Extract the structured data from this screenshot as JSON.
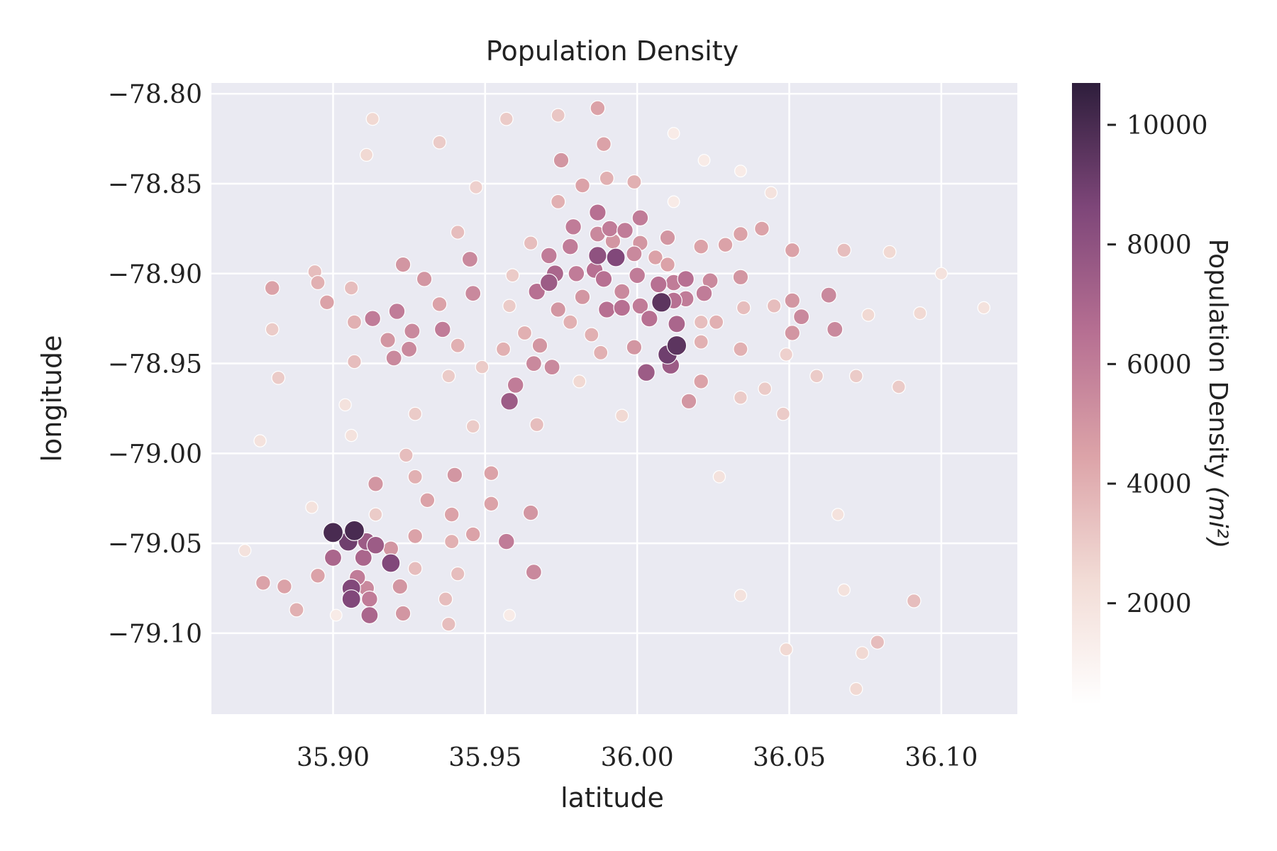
{
  "chart_data": {
    "type": "scatter",
    "title": "Population Density",
    "xlabel": "latitude",
    "ylabel": "longitude",
    "xlim": [
      35.86,
      36.125
    ],
    "ylim": [
      -79.145,
      -78.794
    ],
    "xticks": [
      35.9,
      35.95,
      36.0,
      36.05,
      36.1
    ],
    "yticks": [
      -78.8,
      -78.85,
      -78.9,
      -78.95,
      -79.0,
      -79.05,
      -79.1
    ],
    "xtick_labels": [
      "35.90",
      "35.95",
      "36.00",
      "36.05",
      "36.10"
    ],
    "ytick_labels": [
      "−78.80",
      "−78.85",
      "−78.90",
      "−78.95",
      "−79.00",
      "−79.05",
      "−79.10"
    ],
    "grid": true,
    "background_color": "#eaeaf2",
    "colorbar": {
      "label": "Population Density",
      "label_unit": "(mi²)",
      "range": [
        300,
        10700
      ],
      "ticks": [
        2000,
        4000,
        6000,
        8000,
        10000
      ],
      "tick_labels": [
        "2000",
        "4000",
        "6000",
        "8000",
        "10000"
      ],
      "colors": [
        "#ffffff",
        "#f2dcd6",
        "#dca3a8",
        "#b66f92",
        "#7e4679",
        "#2e1e3c"
      ]
    },
    "points": [
      [
        35.913,
        -78.814,
        2500
      ],
      [
        35.911,
        -78.834,
        2500
      ],
      [
        35.935,
        -78.827,
        3000
      ],
      [
        35.957,
        -78.814,
        3000
      ],
      [
        35.974,
        -78.812,
        3200
      ],
      [
        35.987,
        -78.808,
        4500
      ],
      [
        36.012,
        -78.822,
        1500
      ],
      [
        35.989,
        -78.828,
        4500
      ],
      [
        35.975,
        -78.837,
        5000
      ],
      [
        36.022,
        -78.837,
        1500
      ],
      [
        36.034,
        -78.843,
        1500
      ],
      [
        35.947,
        -78.852,
        2800
      ],
      [
        35.99,
        -78.847,
        4000
      ],
      [
        35.982,
        -78.851,
        4500
      ],
      [
        35.999,
        -78.849,
        4000
      ],
      [
        35.974,
        -78.86,
        4000
      ],
      [
        36.012,
        -78.86,
        1500
      ],
      [
        36.044,
        -78.855,
        2000
      ],
      [
        35.941,
        -78.877,
        3500
      ],
      [
        35.987,
        -78.866,
        6500
      ],
      [
        35.979,
        -78.874,
        6000
      ],
      [
        35.991,
        -78.875,
        6000
      ],
      [
        35.996,
        -78.876,
        6000
      ],
      [
        36.001,
        -78.869,
        6000
      ],
      [
        35.965,
        -78.883,
        3500
      ],
      [
        35.987,
        -78.878,
        5500
      ],
      [
        35.992,
        -78.882,
        5000
      ],
      [
        36.001,
        -78.883,
        5000
      ],
      [
        36.01,
        -78.88,
        5000
      ],
      [
        36.021,
        -78.885,
        4500
      ],
      [
        36.029,
        -78.884,
        4500
      ],
      [
        36.034,
        -78.878,
        4500
      ],
      [
        36.041,
        -78.875,
        4500
      ],
      [
        36.051,
        -78.887,
        4500
      ],
      [
        36.068,
        -78.887,
        3500
      ],
      [
        36.083,
        -78.888,
        2500
      ],
      [
        36.1,
        -78.9,
        2000
      ],
      [
        35.894,
        -78.899,
        3500
      ],
      [
        35.895,
        -78.905,
        4000
      ],
      [
        35.88,
        -78.908,
        4500
      ],
      [
        35.906,
        -78.908,
        3500
      ],
      [
        35.898,
        -78.916,
        4500
      ],
      [
        35.88,
        -78.931,
        3000
      ],
      [
        35.907,
        -78.927,
        4000
      ],
      [
        35.913,
        -78.925,
        6000
      ],
      [
        35.923,
        -78.895,
        5000
      ],
      [
        35.93,
        -78.903,
        5000
      ],
      [
        35.945,
        -78.892,
        5500
      ],
      [
        35.946,
        -78.911,
        5500
      ],
      [
        35.935,
        -78.917,
        4500
      ],
      [
        35.958,
        -78.918,
        3000
      ],
      [
        35.959,
        -78.901,
        3000
      ],
      [
        35.971,
        -78.89,
        6000
      ],
      [
        35.978,
        -78.885,
        6000
      ],
      [
        35.973,
        -78.9,
        7000
      ],
      [
        35.98,
        -78.9,
        6000
      ],
      [
        35.987,
        -78.89,
        8000
      ],
      [
        35.993,
        -78.891,
        8500
      ],
      [
        35.986,
        -78.898,
        6500
      ],
      [
        35.989,
        -78.903,
        6500
      ],
      [
        35.999,
        -78.889,
        5500
      ],
      [
        36.006,
        -78.891,
        4500
      ],
      [
        36.01,
        -78.895,
        4500
      ],
      [
        35.971,
        -78.905,
        7500
      ],
      [
        35.967,
        -78.91,
        6500
      ],
      [
        35.982,
        -78.913,
        5000
      ],
      [
        35.974,
        -78.92,
        5000
      ],
      [
        35.978,
        -78.927,
        4000
      ],
      [
        35.985,
        -78.934,
        4000
      ],
      [
        35.99,
        -78.92,
        6500
      ],
      [
        35.995,
        -78.919,
        6500
      ],
      [
        35.995,
        -78.91,
        5500
      ],
      [
        36.0,
        -78.901,
        6000
      ],
      [
        36.001,
        -78.918,
        6000
      ],
      [
        36.008,
        -78.916,
        9500
      ],
      [
        36.007,
        -78.906,
        6500
      ],
      [
        36.012,
        -78.905,
        6000
      ],
      [
        36.016,
        -78.903,
        6500
      ],
      [
        36.012,
        -78.915,
        6500
      ],
      [
        36.016,
        -78.914,
        6000
      ],
      [
        36.022,
        -78.911,
        6000
      ],
      [
        36.024,
        -78.904,
        5500
      ],
      [
        36.034,
        -78.902,
        5000
      ],
      [
        36.004,
        -78.925,
        6500
      ],
      [
        36.013,
        -78.928,
        7000
      ],
      [
        36.021,
        -78.927,
        3500
      ],
      [
        36.026,
        -78.927,
        4000
      ],
      [
        36.035,
        -78.919,
        3500
      ],
      [
        36.045,
        -78.918,
        3500
      ],
      [
        36.051,
        -78.915,
        5000
      ],
      [
        36.054,
        -78.924,
        5500
      ],
      [
        36.051,
        -78.933,
        5000
      ],
      [
        36.063,
        -78.912,
        5500
      ],
      [
        36.065,
        -78.931,
        5500
      ],
      [
        36.076,
        -78.923,
        2500
      ],
      [
        36.093,
        -78.922,
        2500
      ],
      [
        36.114,
        -78.919,
        2000
      ],
      [
        35.921,
        -78.921,
        6000
      ],
      [
        35.918,
        -78.937,
        5000
      ],
      [
        35.926,
        -78.932,
        5500
      ],
      [
        35.925,
        -78.942,
        5500
      ],
      [
        35.92,
        -78.947,
        5500
      ],
      [
        35.936,
        -78.931,
        6000
      ],
      [
        35.941,
        -78.94,
        4000
      ],
      [
        35.907,
        -78.949,
        3500
      ],
      [
        35.882,
        -78.958,
        3000
      ],
      [
        35.938,
        -78.957,
        3000
      ],
      [
        35.949,
        -78.952,
        3000
      ],
      [
        35.956,
        -78.942,
        4000
      ],
      [
        35.963,
        -78.933,
        4000
      ],
      [
        35.968,
        -78.94,
        5000
      ],
      [
        35.966,
        -78.95,
        5500
      ],
      [
        35.972,
        -78.952,
        5500
      ],
      [
        35.96,
        -78.962,
        6000
      ],
      [
        35.958,
        -78.971,
        7500
      ],
      [
        35.988,
        -78.944,
        4000
      ],
      [
        35.999,
        -78.941,
        5000
      ],
      [
        36.003,
        -78.955,
        7500
      ],
      [
        36.01,
        -78.945,
        9000
      ],
      [
        36.013,
        -78.94,
        9500
      ],
      [
        36.011,
        -78.951,
        7500
      ],
      [
        36.021,
        -78.938,
        4000
      ],
      [
        36.021,
        -78.96,
        4500
      ],
      [
        36.017,
        -78.971,
        5000
      ],
      [
        36.034,
        -78.942,
        4000
      ],
      [
        36.034,
        -78.969,
        3000
      ],
      [
        36.042,
        -78.964,
        3000
      ],
      [
        36.049,
        -78.945,
        2800
      ],
      [
        36.048,
        -78.978,
        3000
      ],
      [
        36.059,
        -78.957,
        3000
      ],
      [
        36.072,
        -78.957,
        3000
      ],
      [
        36.086,
        -78.963,
        3000
      ],
      [
        35.904,
        -78.973,
        2000
      ],
      [
        35.927,
        -78.978,
        3000
      ],
      [
        35.946,
        -78.985,
        3000
      ],
      [
        35.967,
        -78.984,
        3500
      ],
      [
        35.981,
        -78.96,
        2500
      ],
      [
        35.995,
        -78.979,
        2500
      ],
      [
        35.906,
        -78.99,
        2000
      ],
      [
        35.876,
        -78.993,
        2000
      ],
      [
        35.924,
        -79.001,
        3500
      ],
      [
        35.927,
        -79.013,
        4000
      ],
      [
        35.952,
        -79.011,
        4500
      ],
      [
        35.94,
        -79.012,
        5000
      ],
      [
        35.914,
        -79.017,
        5000
      ],
      [
        35.931,
        -79.026,
        4500
      ],
      [
        35.952,
        -79.028,
        4500
      ],
      [
        35.965,
        -79.033,
        5000
      ],
      [
        35.939,
        -79.034,
        4500
      ],
      [
        35.914,
        -79.034,
        3000
      ],
      [
        35.893,
        -79.03,
        2000
      ],
      [
        36.027,
        -79.013,
        2000
      ],
      [
        35.9,
        -79.044,
        10000
      ],
      [
        35.907,
        -79.043,
        10000
      ],
      [
        35.905,
        -79.049,
        9000
      ],
      [
        35.911,
        -79.049,
        7500
      ],
      [
        35.914,
        -79.051,
        7500
      ],
      [
        35.919,
        -79.053,
        5000
      ],
      [
        35.927,
        -79.046,
        4500
      ],
      [
        35.939,
        -79.049,
        4000
      ],
      [
        35.946,
        -79.045,
        4500
      ],
      [
        35.957,
        -79.049,
        6000
      ],
      [
        35.9,
        -79.058,
        7000
      ],
      [
        35.91,
        -79.058,
        7000
      ],
      [
        35.919,
        -79.061,
        8500
      ],
      [
        35.927,
        -79.064,
        3500
      ],
      [
        35.941,
        -79.067,
        3500
      ],
      [
        35.966,
        -79.066,
        5500
      ],
      [
        35.908,
        -79.069,
        6000
      ],
      [
        35.911,
        -79.075,
        5500
      ],
      [
        35.922,
        -79.074,
        5000
      ],
      [
        35.906,
        -79.075,
        8500
      ],
      [
        35.906,
        -79.081,
        8500
      ],
      [
        35.912,
        -79.081,
        6000
      ],
      [
        35.912,
        -79.09,
        7000
      ],
      [
        35.923,
        -79.089,
        5000
      ],
      [
        35.895,
        -79.068,
        4500
      ],
      [
        35.884,
        -79.074,
        4500
      ],
      [
        35.877,
        -79.072,
        4500
      ],
      [
        35.871,
        -79.054,
        2000
      ],
      [
        35.888,
        -79.087,
        4000
      ],
      [
        35.901,
        -79.09,
        1500
      ],
      [
        35.958,
        -79.09,
        1500
      ],
      [
        35.937,
        -79.081,
        3500
      ],
      [
        35.938,
        -79.095,
        3500
      ],
      [
        36.066,
        -79.034,
        2000
      ],
      [
        36.034,
        -79.079,
        2000
      ],
      [
        36.068,
        -79.076,
        2000
      ],
      [
        36.091,
        -79.082,
        3500
      ],
      [
        36.049,
        -79.109,
        2500
      ],
      [
        36.074,
        -79.111,
        2500
      ],
      [
        36.079,
        -79.105,
        3500
      ],
      [
        36.072,
        -79.131,
        2500
      ]
    ]
  }
}
